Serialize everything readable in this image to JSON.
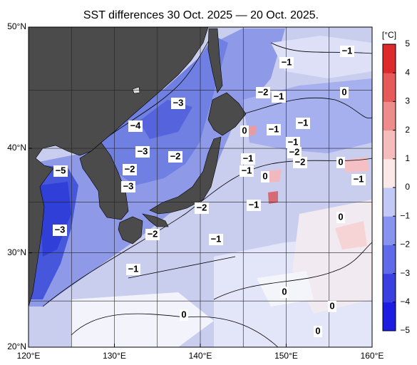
{
  "title": "SST differences 30 Oct. 2025 — 20 Oct. 2025.",
  "extent": {
    "lon": [
      120,
      160
    ],
    "lat": [
      20,
      50
    ]
  },
  "lon_ticks": [
    {
      "value": 120,
      "label": "120°E"
    },
    {
      "value": 130,
      "label": "130°E"
    },
    {
      "value": 140,
      "label": "140°E"
    },
    {
      "value": 150,
      "label": "150°E"
    },
    {
      "value": 160,
      "label": "160°E"
    }
  ],
  "lat_ticks": [
    {
      "value": 20,
      "label": "20°N"
    },
    {
      "value": 30,
      "label": "30°N"
    },
    {
      "value": 40,
      "label": "40°N"
    },
    {
      "value": 50,
      "label": "50°N"
    }
  ],
  "gridlines": {
    "lon": [
      125,
      130,
      135,
      140,
      145,
      150,
      155
    ],
    "lat": [
      25,
      30,
      35,
      40,
      45
    ]
  },
  "colorbar": {
    "unit": "[°C]",
    "lim": [
      -5,
      5
    ],
    "ticks": [
      5,
      4,
      3,
      2,
      1,
      0,
      {
        "value": -1,
        "label": "−1"
      },
      {
        "value": -2,
        "label": "−2"
      },
      {
        "value": -3,
        "label": "−3"
      },
      {
        "value": -4,
        "label": "−4"
      },
      {
        "value": -5,
        "label": "−5"
      }
    ],
    "colors": [
      "#1c1ce3",
      "#3a3fe0",
      "#5e6ae8",
      "#8793ef",
      "#c3c9f6",
      "#fde8e8",
      "#f6bcbc",
      "#ee8c8c",
      "#e65a5a",
      "#dd2a2a"
    ]
  },
  "contour_labels": [
    "−1",
    "−1",
    "−2",
    "−1",
    "0",
    "−3",
    "−4",
    "−1",
    "0",
    "−1",
    "−1",
    "−3",
    "−2",
    "−2",
    "−2",
    "−1",
    "−2",
    "−5",
    "0",
    "−1",
    "0",
    "−3",
    "−1",
    "−1",
    "−2",
    "0",
    "−2",
    "−3",
    "−1",
    "−1",
    "0",
    "0",
    "0",
    "0"
  ]
}
